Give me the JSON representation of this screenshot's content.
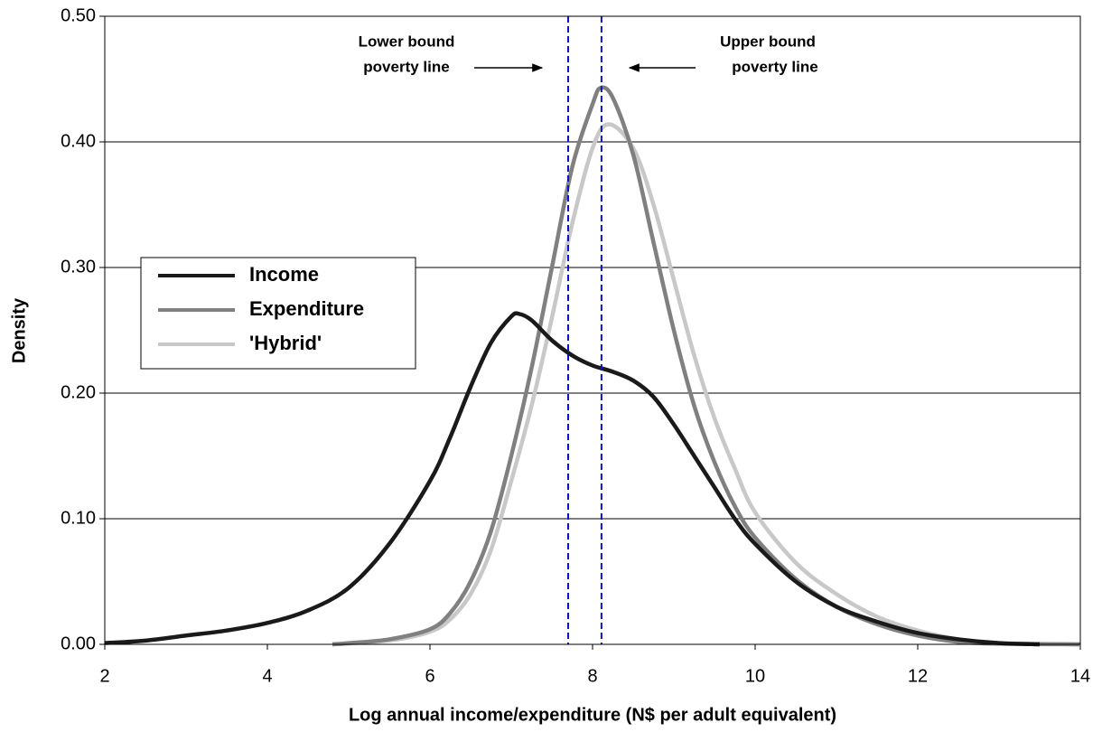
{
  "chart_data": {
    "type": "line",
    "y_label": "Density",
    "x_label": "Log annual income/expenditure (N$ per adult equivalent)",
    "xlim": [
      2,
      14
    ],
    "xticks": [
      2,
      4,
      6,
      8,
      10,
      12,
      14
    ],
    "ylim": [
      0,
      0.5
    ],
    "yticks": [
      {
        "value": 0,
        "label": "0.00"
      },
      {
        "value": 0.1,
        "label": "0.10"
      },
      {
        "value": 0.2,
        "label": "0.20"
      },
      {
        "value": 0.3,
        "label": "0.30"
      },
      {
        "value": 0.4,
        "label": "0.40"
      },
      {
        "value": 0.5,
        "label": "0.50"
      }
    ],
    "grid": true,
    "legend": "left",
    "series": [
      {
        "name": "Income",
        "color": "#1a1a1a",
        "x": [
          2,
          2.5,
          3,
          3.5,
          4,
          4.5,
          5,
          5.5,
          6,
          6.25,
          6.5,
          6.75,
          7,
          7.1,
          7.25,
          7.5,
          7.75,
          8,
          8.25,
          8.5,
          8.75,
          9,
          9.25,
          9.5,
          9.75,
          10,
          10.5,
          11,
          11.5,
          12,
          12.5,
          13,
          13.5
        ],
        "values": [
          0.001,
          0.003,
          0.007,
          0.011,
          0.017,
          0.027,
          0.045,
          0.08,
          0.13,
          0.165,
          0.205,
          0.24,
          0.261,
          0.263,
          0.258,
          0.242,
          0.23,
          0.222,
          0.217,
          0.21,
          0.197,
          0.175,
          0.15,
          0.125,
          0.1,
          0.08,
          0.05,
          0.03,
          0.018,
          0.009,
          0.004,
          0.001,
          0
        ]
      },
      {
        "name": "Expenditure",
        "color": "#808080",
        "x": [
          4.8,
          5,
          5.5,
          6,
          6.25,
          6.5,
          6.75,
          7,
          7.25,
          7.5,
          7.75,
          8,
          8.1,
          8.25,
          8.5,
          8.75,
          9,
          9.25,
          9.5,
          9.75,
          10,
          10.5,
          11,
          11.5,
          12,
          12.5,
          13,
          14
        ],
        "values": [
          0,
          0.001,
          0.004,
          0.012,
          0.025,
          0.05,
          0.09,
          0.15,
          0.22,
          0.3,
          0.38,
          0.43,
          0.443,
          0.435,
          0.39,
          0.32,
          0.25,
          0.19,
          0.145,
          0.11,
          0.085,
          0.052,
          0.03,
          0.016,
          0.007,
          0.002,
          0.0005,
          0
        ]
      },
      {
        "name": "'Hybrid'",
        "color": "#c8c8c8",
        "x": [
          4.8,
          5.5,
          6,
          6.25,
          6.5,
          6.75,
          7,
          7.25,
          7.5,
          7.75,
          8,
          8.2,
          8.5,
          8.75,
          9,
          9.25,
          9.5,
          9.75,
          10,
          10.5,
          11,
          11.5,
          12,
          12.5,
          13,
          14
        ],
        "values": [
          0,
          0.003,
          0.01,
          0.02,
          0.04,
          0.075,
          0.13,
          0.19,
          0.26,
          0.335,
          0.395,
          0.414,
          0.395,
          0.35,
          0.29,
          0.23,
          0.18,
          0.14,
          0.105,
          0.065,
          0.04,
          0.022,
          0.011,
          0.004,
          0.001,
          0
        ]
      }
    ],
    "reference_lines": [
      {
        "x": 7.7,
        "color": "#1010cc",
        "label": [
          "Lower bound",
          "poverty line"
        ]
      },
      {
        "x": 8.11,
        "color": "#1010cc",
        "label": [
          "Upper bound",
          "poverty line"
        ]
      }
    ]
  }
}
